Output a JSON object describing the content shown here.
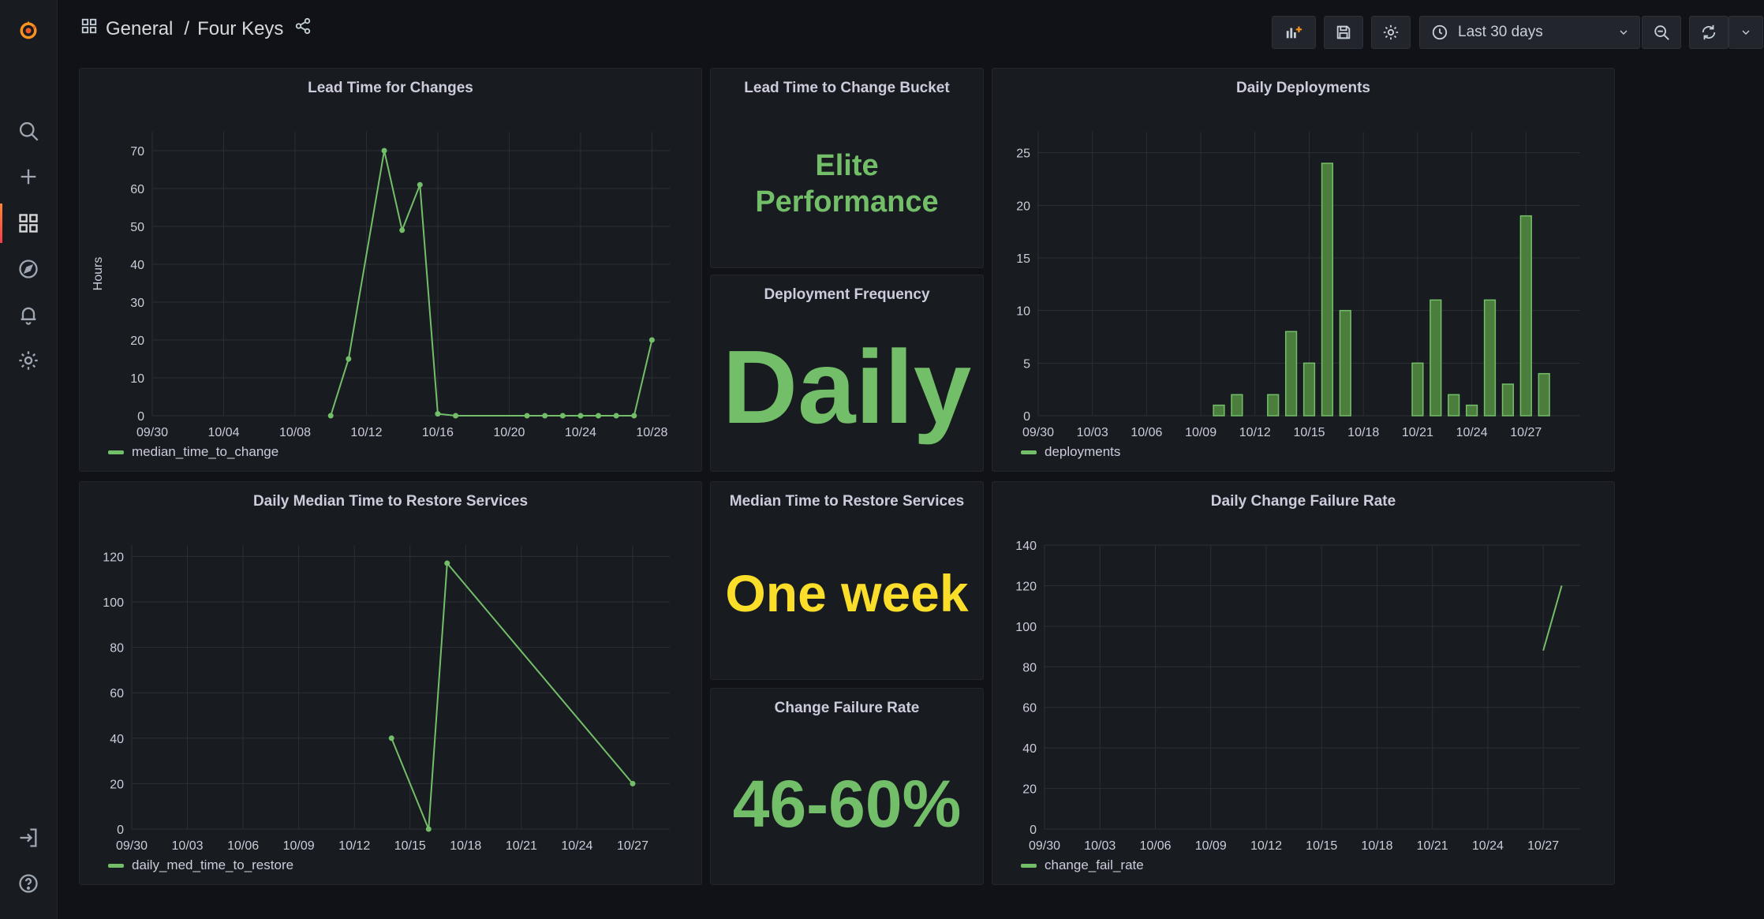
{
  "breadcrumb": {
    "folder": "General",
    "separator": "/",
    "dashboard": "Four Keys"
  },
  "toolbar": {
    "time_range": "Last 30 days"
  },
  "colors": {
    "green": "#73bf69",
    "yellow": "#fade2a",
    "bar_fill": "#4b7d3c",
    "grid": "#2c2f35"
  },
  "panels": {
    "lead_time": {
      "title": "Lead Time for Changes",
      "ylabel": "Hours",
      "legend": "median_time_to_change"
    },
    "bucket": {
      "title": "Lead Time to Change Bucket",
      "line1": "Elite",
      "line2": "Performance"
    },
    "deploy_freq": {
      "title": "Deployment Frequency",
      "value": "Daily"
    },
    "daily_deploy": {
      "title": "Daily Deployments",
      "legend": "deployments"
    },
    "restore": {
      "title": "Daily Median Time to Restore Services",
      "legend": "daily_med_time_to_restore"
    },
    "median_restore": {
      "title": "Median Time to Restore Services",
      "value": "One week"
    },
    "cfr": {
      "title": "Change Failure Rate",
      "value": "46-60%"
    },
    "daily_cfr": {
      "title": "Daily Change Failure Rate",
      "legend": "change_fail_rate"
    }
  },
  "chart_data": [
    {
      "id": "lead_time",
      "type": "line",
      "title": "Lead Time for Changes",
      "ylabel": "Hours",
      "xmin": 0,
      "xmax": 29,
      "ylim": [
        0,
        75
      ],
      "yticks": [
        0,
        10,
        20,
        30,
        40,
        50,
        60,
        70
      ],
      "xticks": [
        {
          "x": 0,
          "label": "09/30"
        },
        {
          "x": 4,
          "label": "10/04"
        },
        {
          "x": 8,
          "label": "10/08"
        },
        {
          "x": 12,
          "label": "10/12"
        },
        {
          "x": 16,
          "label": "10/16"
        },
        {
          "x": 20,
          "label": "10/20"
        },
        {
          "x": 24,
          "label": "10/24"
        },
        {
          "x": 28,
          "label": "10/28"
        }
      ],
      "series": [
        {
          "name": "median_time_to_change",
          "points": [
            [
              10,
              0
            ],
            [
              11,
              15
            ],
            [
              13,
              70
            ],
            [
              14,
              49
            ],
            [
              15,
              61
            ],
            [
              16,
              0.5
            ],
            [
              17,
              0
            ],
            [
              21,
              0
            ],
            [
              22,
              0
            ],
            [
              23,
              0
            ],
            [
              24,
              0
            ],
            [
              25,
              0
            ],
            [
              26,
              0
            ],
            [
              27,
              0
            ],
            [
              28,
              20
            ]
          ]
        }
      ]
    },
    {
      "id": "daily_deploy",
      "type": "bar",
      "title": "Daily Deployments",
      "xmin": 0,
      "xmax": 30,
      "ylim": [
        0,
        27
      ],
      "yticks": [
        0,
        5,
        10,
        15,
        20,
        25
      ],
      "xticks": [
        {
          "x": 0,
          "label": "09/30"
        },
        {
          "x": 3,
          "label": "10/03"
        },
        {
          "x": 6,
          "label": "10/06"
        },
        {
          "x": 9,
          "label": "10/09"
        },
        {
          "x": 12,
          "label": "10/12"
        },
        {
          "x": 15,
          "label": "10/15"
        },
        {
          "x": 18,
          "label": "10/18"
        },
        {
          "x": 21,
          "label": "10/21"
        },
        {
          "x": 24,
          "label": "10/24"
        },
        {
          "x": 27,
          "label": "10/27"
        }
      ],
      "series": [
        {
          "name": "deployments",
          "points": [
            [
              10,
              1
            ],
            [
              11,
              2
            ],
            [
              13,
              2
            ],
            [
              14,
              8
            ],
            [
              15,
              5
            ],
            [
              16,
              24
            ],
            [
              17,
              10
            ],
            [
              21,
              5
            ],
            [
              22,
              11
            ],
            [
              23,
              2
            ],
            [
              24,
              1
            ],
            [
              25,
              11
            ],
            [
              26,
              3
            ],
            [
              27,
              19
            ],
            [
              28,
              4
            ]
          ]
        }
      ]
    },
    {
      "id": "restore",
      "type": "line",
      "title": "Daily Median Time to Restore Services",
      "xmin": 0,
      "xmax": 29,
      "ylim": [
        0,
        125
      ],
      "yticks": [
        0,
        20,
        40,
        60,
        80,
        100,
        120
      ],
      "xticks": [
        {
          "x": 0,
          "label": "09/30"
        },
        {
          "x": 3,
          "label": "10/03"
        },
        {
          "x": 6,
          "label": "10/06"
        },
        {
          "x": 9,
          "label": "10/09"
        },
        {
          "x": 12,
          "label": "10/12"
        },
        {
          "x": 15,
          "label": "10/15"
        },
        {
          "x": 18,
          "label": "10/18"
        },
        {
          "x": 21,
          "label": "10/21"
        },
        {
          "x": 24,
          "label": "10/24"
        },
        {
          "x": 27,
          "label": "10/27"
        }
      ],
      "series": [
        {
          "name": "daily_med_time_to_restore",
          "points": [
            [
              14,
              40
            ],
            [
              16,
              0
            ],
            [
              17,
              117
            ],
            [
              27,
              20
            ]
          ]
        }
      ]
    },
    {
      "id": "daily_cfr",
      "type": "line",
      "title": "Daily Change Failure Rate",
      "xmin": 0,
      "xmax": 29,
      "ylim": [
        0,
        140
      ],
      "yticks": [
        0,
        20,
        40,
        60,
        80,
        100,
        120,
        140
      ],
      "xticks": [
        {
          "x": 0,
          "label": "09/30"
        },
        {
          "x": 3,
          "label": "10/03"
        },
        {
          "x": 6,
          "label": "10/06"
        },
        {
          "x": 9,
          "label": "10/09"
        },
        {
          "x": 12,
          "label": "10/12"
        },
        {
          "x": 15,
          "label": "10/15"
        },
        {
          "x": 18,
          "label": "10/18"
        },
        {
          "x": 21,
          "label": "10/21"
        },
        {
          "x": 24,
          "label": "10/24"
        },
        {
          "x": 27,
          "label": "10/27"
        }
      ],
      "series": [
        {
          "name": "change_fail_rate",
          "nodots": true,
          "points": [
            [
              27,
              88
            ],
            [
              28,
              120
            ]
          ]
        }
      ]
    }
  ]
}
